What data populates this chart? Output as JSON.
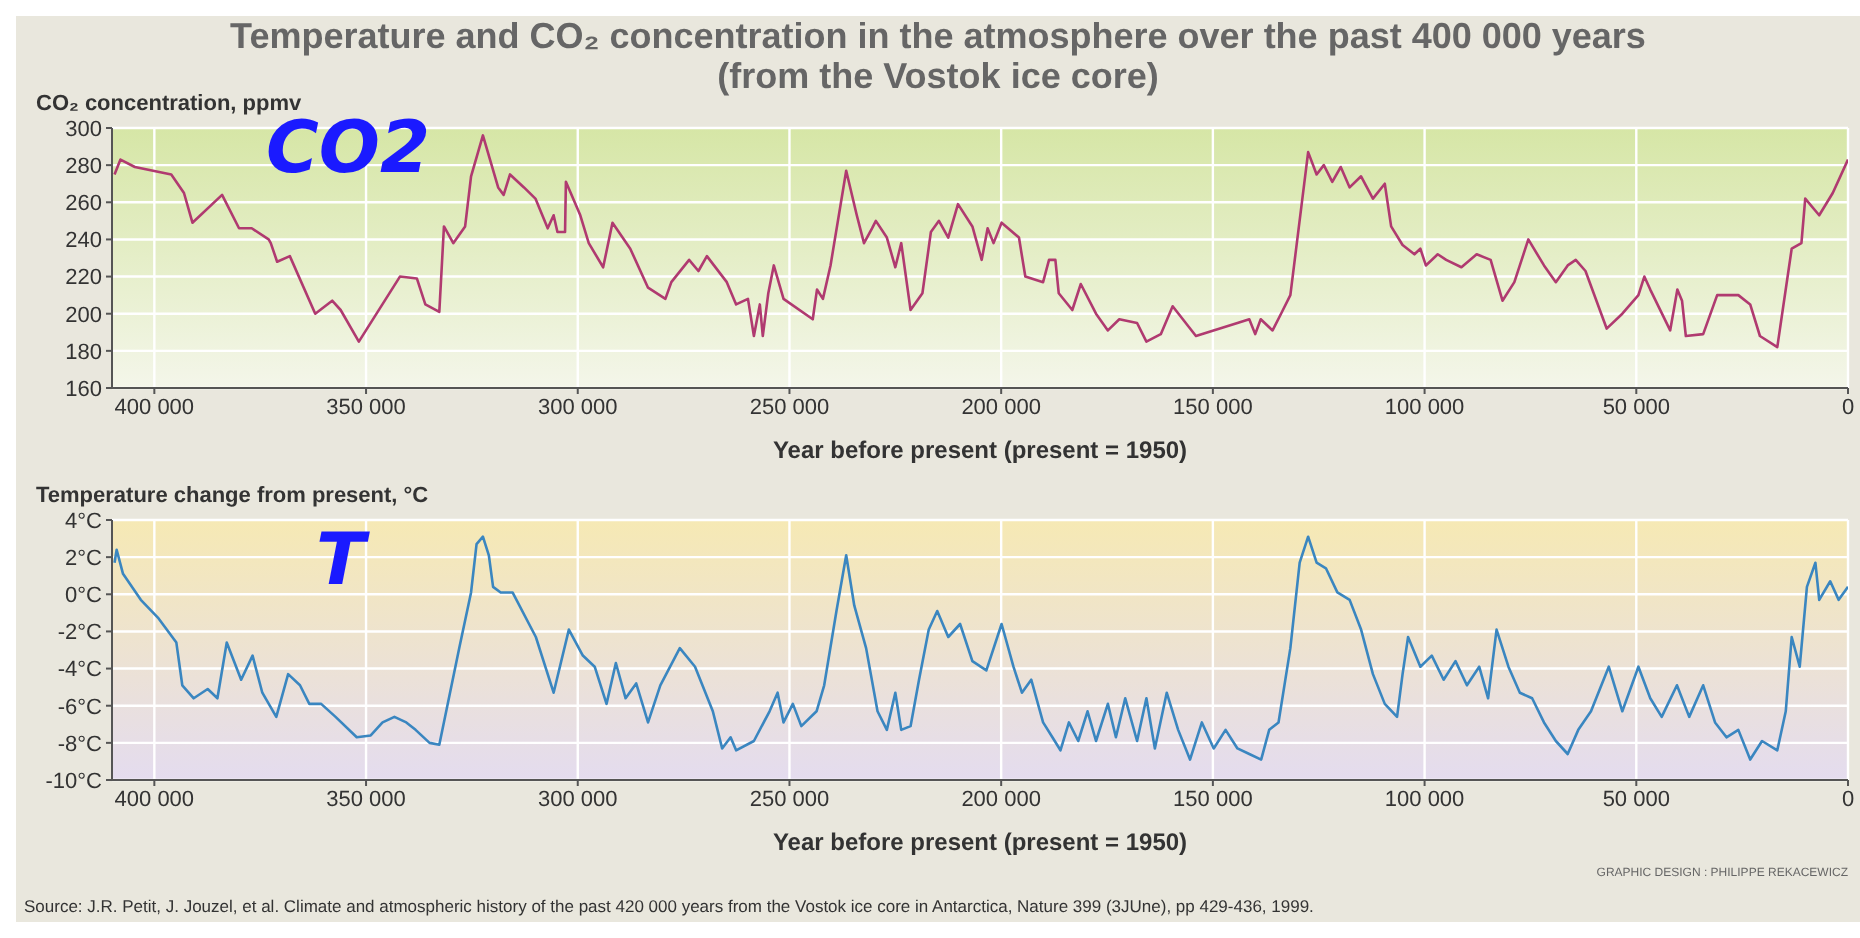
{
  "chart_data": [
    {
      "type": "line",
      "title": "Temperature and CO₂ concentration in the atmosphere over the past 400 000 years\n(from the Vostok ice core)",
      "ylabel": "CO₂ concentration, ppmv",
      "xlabel": "Year before present (present = 1950)",
      "annotations": [
        "CO2"
      ],
      "xlim": [
        410000,
        0
      ],
      "xticks": [
        {
          "value": 400000,
          "label": "400 000"
        },
        {
          "value": 350000,
          "label": "350 000"
        },
        {
          "value": 300000,
          "label": "300 000"
        },
        {
          "value": 250000,
          "label": "250 000"
        },
        {
          "value": 200000,
          "label": "200 000"
        },
        {
          "value": 150000,
          "label": "150 000"
        },
        {
          "value": 100000,
          "label": "100 000"
        },
        {
          "value": 50000,
          "label": "50 000"
        },
        0
      ],
      "ylim": [
        160,
        300
      ],
      "yticks": [
        160,
        180,
        200,
        220,
        240,
        260,
        280,
        300
      ],
      "grid": true,
      "marker": "none",
      "line_style": "solid",
      "series": [
        {
          "color": "#b03a70",
          "x": [
            409400,
            408000,
            404600,
            396000,
            393000,
            391000,
            384000,
            380000,
            377000,
            373000,
            372500,
            371000,
            368000,
            362000,
            358000,
            356000,
            351700,
            342000,
            338000,
            336000,
            332700,
            331600,
            329400,
            326600,
            325200,
            322400,
            318800,
            317500,
            316000,
            312700,
            310000,
            307100,
            305700,
            304800,
            303000,
            302800,
            299400,
            297400,
            294000,
            291800,
            287600,
            283400,
            279300,
            277900,
            273700,
            271500,
            269500,
            264800,
            262600,
            259800,
            258400,
            257000,
            256300,
            255000,
            253700,
            251400,
            244500,
            243500,
            242100,
            240300,
            236600,
            234100,
            232400,
            230500,
            229600,
            227000,
            225000,
            223600,
            221400,
            218600,
            216600,
            214700,
            212500,
            210200,
            206800,
            204600,
            203200,
            201800,
            199900,
            195800,
            194300,
            190100,
            188700,
            187200,
            186400,
            183200,
            181200,
            177600,
            174800,
            172100,
            167900,
            165700,
            162300,
            159500,
            154000,
            144200,
            141400,
            140000,
            138700,
            135900,
            133900,
            131700,
            127500,
            125500,
            123800,
            121800,
            119800,
            117700,
            115000,
            112200,
            109400,
            107900,
            105200,
            102400,
            101000,
            99700,
            96900,
            94900,
            91300,
            87700,
            84400,
            81600,
            78800,
            75500,
            71800,
            69000,
            66200,
            64300,
            62000,
            57000,
            53300,
            49500,
            48100,
            46700,
            42000,
            40300,
            39200,
            38300,
            34200,
            30900,
            25900,
            23100,
            20800,
            16700,
            13300,
            11000,
            10100,
            6800,
            3600,
            0
          ],
          "values": [
            275,
            283,
            279,
            275,
            265,
            249,
            264,
            246,
            246,
            240,
            238,
            228,
            231,
            200,
            207,
            202,
            185,
            220,
            219,
            205,
            201,
            247,
            238,
            247,
            274,
            296,
            268,
            264,
            275,
            268,
            262,
            246,
            253,
            244,
            244,
            271,
            253,
            238,
            225,
            249,
            235,
            214,
            208,
            217,
            229,
            223,
            231,
            217,
            205,
            208,
            188,
            205,
            188,
            211,
            226,
            208,
            197,
            213,
            208,
            226,
            277,
            253,
            238,
            246,
            250,
            241,
            225,
            238,
            202,
            211,
            244,
            250,
            241,
            259,
            247,
            229,
            246,
            238,
            249,
            241,
            220,
            217,
            229,
            229,
            211,
            202,
            216,
            200,
            191,
            197,
            195,
            185,
            189,
            204,
            188,
            195,
            197,
            189,
            197,
            191,
            200,
            210,
            287,
            275,
            280,
            271,
            279,
            268,
            274,
            262,
            270,
            247,
            237,
            232,
            235,
            226,
            232,
            229,
            225,
            232,
            229,
            207,
            217,
            240,
            226,
            217,
            226,
            229,
            223,
            192,
            200,
            210,
            220,
            213,
            191,
            213,
            207,
            188,
            189,
            210,
            210,
            205,
            188,
            182,
            235,
            238,
            262,
            253,
            265,
            283
          ]
        }
      ]
    },
    {
      "type": "line",
      "ylabel": "Temperature change from present, °C",
      "xlabel": "Year before present (present = 1950)",
      "annotations": [
        "T",
        "GRAPHIC DESIGN : PHILIPPE REKACEWICZ",
        "Source: J.R. Petit, J. Jouzel, et al. Climate and atmospheric history of the past 420 000 years from the Vostok ice core in Antarctica, Nature 399 (3JUne), pp 429-436, 1999."
      ],
      "xlim": [
        410000,
        0
      ],
      "xticks": [
        {
          "value": 400000,
          "label": "400 000"
        },
        {
          "value": 350000,
          "label": "350 000"
        },
        {
          "value": 300000,
          "label": "300 000"
        },
        {
          "value": 250000,
          "label": "250 000"
        },
        {
          "value": 200000,
          "label": "200 000"
        },
        {
          "value": 150000,
          "label": "150 000"
        },
        {
          "value": 100000,
          "label": "100 000"
        },
        {
          "value": 50000,
          "label": "50 000"
        },
        0
      ],
      "ylim": [
        -10,
        4
      ],
      "yticks": [
        {
          "value": -10,
          "label": "-10°C"
        },
        {
          "value": -8,
          "label": "-8°C"
        },
        {
          "value": -6,
          "label": "-6°C"
        },
        {
          "value": -4,
          "label": "-4°C"
        },
        {
          "value": -2,
          "label": "-2°C"
        },
        {
          "value": 0,
          "label": "0°C"
        },
        {
          "value": 2,
          "label": "2°C"
        },
        {
          "value": 4,
          "label": "4°C"
        }
      ],
      "grid": true,
      "marker": "none",
      "line_style": "solid",
      "series": [
        {
          "color": "#3a86c0",
          "x": [
            409400,
            408900,
            407400,
            403200,
            399000,
            394800,
            393400,
            390700,
            387400,
            385100,
            382900,
            379500,
            376800,
            374500,
            371200,
            368400,
            365600,
            363400,
            360600,
            357200,
            352200,
            348900,
            346100,
            343300,
            340500,
            338300,
            335000,
            332700,
            328000,
            325200,
            323900,
            322400,
            321000,
            320000,
            318200,
            315400,
            309900,
            305700,
            302100,
            298800,
            296000,
            293200,
            291000,
            288700,
            286200,
            283400,
            280500,
            275900,
            272300,
            268100,
            265900,
            263900,
            262600,
            258400,
            254700,
            252800,
            251400,
            249200,
            247200,
            243600,
            241800,
            238900,
            236600,
            234700,
            231900,
            229200,
            227000,
            225000,
            223600,
            221400,
            219400,
            217100,
            215100,
            212500,
            209700,
            206800,
            203500,
            199900,
            197100,
            195100,
            192900,
            190100,
            187900,
            186000,
            184000,
            181800,
            179600,
            177600,
            174800,
            172900,
            170700,
            167900,
            165700,
            163700,
            160900,
            158200,
            155400,
            152600,
            149800,
            147000,
            144200,
            141400,
            138600,
            136700,
            134500,
            131700,
            129500,
            127500,
            125500,
            123300,
            120600,
            117700,
            115000,
            112200,
            109400,
            106500,
            105200,
            103900,
            101000,
            98300,
            95500,
            92700,
            90000,
            87100,
            85000,
            83000,
            80200,
            77500,
            74600,
            71800,
            69000,
            66200,
            63700,
            60700,
            56500,
            53300,
            49500,
            46700,
            44000,
            40400,
            37500,
            34200,
            31400,
            28700,
            25900,
            23100,
            20300,
            16700,
            14700,
            13300,
            11400,
            9700,
            7700,
            6800,
            4200,
            2200,
            0
          ],
          "values": [
            1.7,
            2.4,
            1.1,
            -0.3,
            -1.3,
            -2.6,
            -4.9,
            -5.6,
            -5.1,
            -5.6,
            -2.6,
            -4.6,
            -3.3,
            -5.3,
            -6.6,
            -4.3,
            -4.9,
            -5.9,
            -5.9,
            -6.6,
            -7.7,
            -7.6,
            -6.9,
            -6.6,
            -6.9,
            -7.3,
            -8.0,
            -8.1,
            -2.9,
            0.1,
            2.7,
            3.1,
            2.1,
            0.4,
            0.1,
            0.1,
            -2.3,
            -5.3,
            -1.9,
            -3.3,
            -3.9,
            -5.9,
            -3.7,
            -5.6,
            -4.8,
            -6.9,
            -4.9,
            -2.9,
            -3.9,
            -6.3,
            -8.3,
            -7.7,
            -8.4,
            -7.9,
            -6.3,
            -5.3,
            -6.9,
            -5.9,
            -7.1,
            -6.3,
            -4.9,
            -0.9,
            2.1,
            -0.6,
            -2.9,
            -6.3,
            -7.3,
            -5.3,
            -7.3,
            -7.1,
            -4.6,
            -1.9,
            -0.9,
            -2.3,
            -1.6,
            -3.6,
            -4.1,
            -1.6,
            -3.9,
            -5.3,
            -4.6,
            -6.9,
            -7.7,
            -8.4,
            -6.9,
            -7.9,
            -6.3,
            -7.9,
            -5.9,
            -7.7,
            -5.6,
            -7.9,
            -5.6,
            -8.3,
            -5.3,
            -7.3,
            -8.9,
            -6.9,
            -8.3,
            -7.3,
            -8.3,
            -8.6,
            -8.9,
            -7.3,
            -6.9,
            -2.9,
            1.7,
            3.1,
            1.7,
            1.4,
            0.1,
            -0.3,
            -1.9,
            -4.3,
            -5.9,
            -6.6,
            -4.3,
            -2.3,
            -3.9,
            -3.3,
            -4.6,
            -3.6,
            -4.9,
            -3.9,
            -5.6,
            -1.9,
            -3.9,
            -5.3,
            -5.6,
            -6.9,
            -7.9,
            -8.6,
            -7.3,
            -6.3,
            -3.9,
            -6.3,
            -3.9,
            -5.6,
            -6.6,
            -4.9,
            -6.6,
            -4.9,
            -6.9,
            -7.7,
            -7.3,
            -8.9,
            -7.9,
            -8.4,
            -6.3,
            -2.3,
            -3.9,
            0.4,
            1.7,
            -0.3,
            0.7,
            -0.3,
            0.4
          ]
        }
      ]
    }
  ]
}
